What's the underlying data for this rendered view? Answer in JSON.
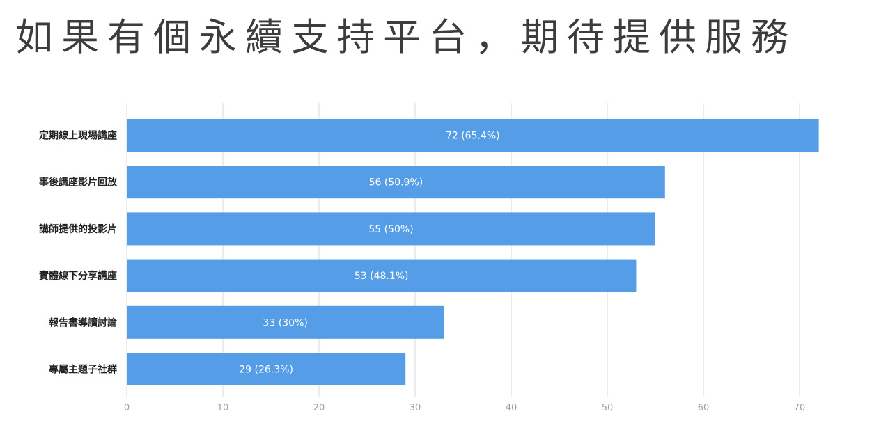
{
  "slide": {
    "title": "如果有個永續支持平台，期待提供服務"
  },
  "chart_data": {
    "type": "bar",
    "orientation": "horizontal",
    "categories": [
      "定期線上現場講座",
      "事後講座影片回放",
      "講師提供的投影片",
      "實體線下分享講座",
      "報告書導讀討論",
      "專屬主題子社群"
    ],
    "values": [
      72,
      56,
      55,
      53,
      33,
      29
    ],
    "data_labels": [
      "72 (65.4%)",
      "56 (50.9%)",
      "55 (50%)",
      "53 (48.1%)",
      "33 (30%)",
      "29 (26.3%)"
    ],
    "xlim": [
      0,
      75
    ],
    "xticks": [
      0,
      10,
      20,
      30,
      40,
      50,
      60,
      70
    ],
    "grid": true,
    "bar_color": "#559de6",
    "label_color": "#ffffff",
    "grid_color": "#d9d9d9",
    "tick_color": "#9e9e9e"
  }
}
